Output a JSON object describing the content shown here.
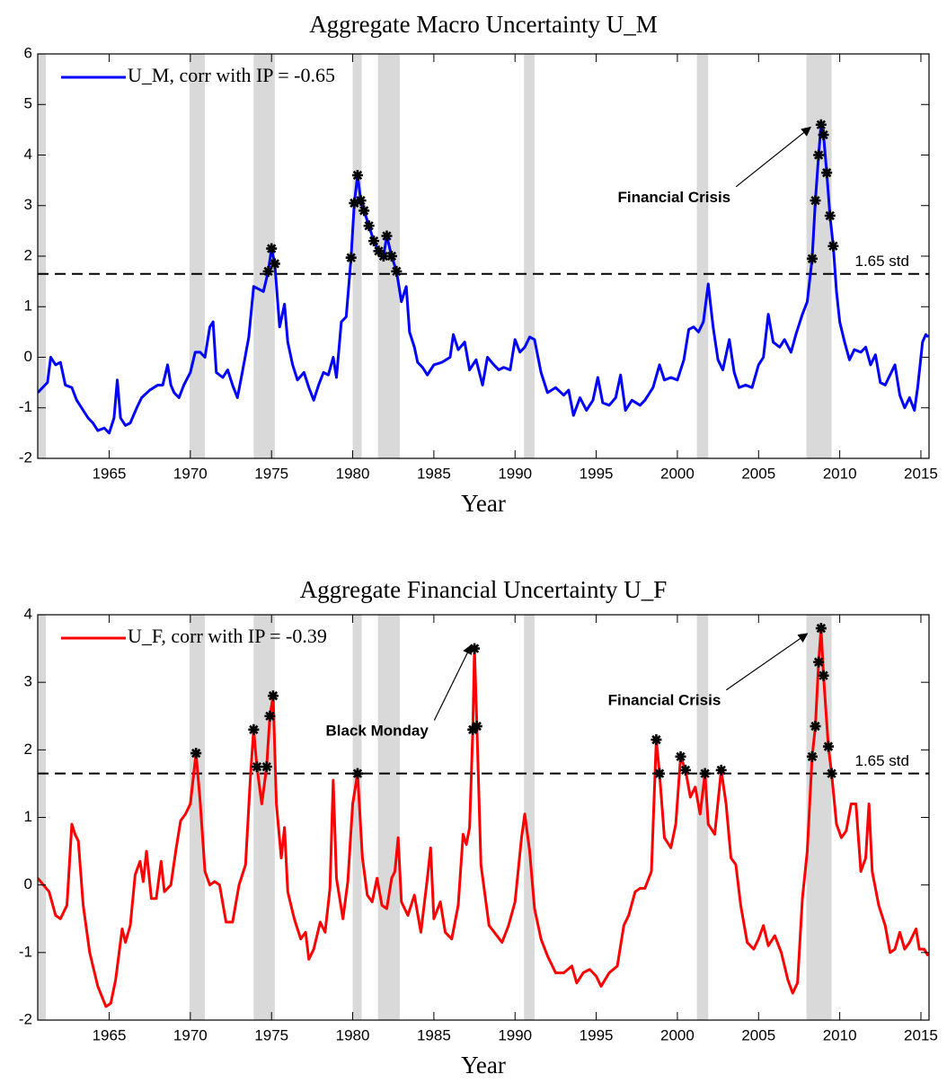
{
  "chart_data": [
    {
      "type": "line",
      "title": "Aggregate Macro Uncertainty U_M",
      "xlabel": "Year",
      "x": [
        1960.6,
        1961.2,
        1961.4,
        1961.7,
        1962.0,
        1962.3,
        1962.7,
        1963.0,
        1963.3,
        1963.7,
        1964.0,
        1964.3,
        1964.7,
        1965.0,
        1965.3,
        1965.5,
        1965.7,
        1966.0,
        1966.3,
        1966.7,
        1967.0,
        1967.5,
        1968.0,
        1968.3,
        1968.6,
        1968.8,
        1969.0,
        1969.3,
        1969.6,
        1970.0,
        1970.3,
        1970.6,
        1970.9,
        1971.2,
        1971.4,
        1971.6,
        1972.0,
        1972.3,
        1972.6,
        1972.9,
        1973.2,
        1973.6,
        1973.9,
        1974.2,
        1974.5,
        1974.8,
        1975.0,
        1975.2,
        1975.5,
        1975.8,
        1976.0,
        1976.3,
        1976.6,
        1977.0,
        1977.3,
        1977.6,
        1977.9,
        1978.2,
        1978.5,
        1978.8,
        1979.0,
        1979.3,
        1979.6,
        1979.9,
        1980.1,
        1980.3,
        1980.5,
        1980.7,
        1981.0,
        1981.3,
        1981.6,
        1981.9,
        1982.1,
        1982.4,
        1982.7,
        1983.0,
        1983.3,
        1983.5,
        1983.8,
        1984.0,
        1984.3,
        1984.6,
        1985.0,
        1985.5,
        1986.0,
        1986.2,
        1986.5,
        1986.9,
        1987.2,
        1987.6,
        1988.0,
        1988.3,
        1988.7,
        1989.0,
        1989.3,
        1989.7,
        1990.0,
        1990.3,
        1990.6,
        1990.9,
        1991.2,
        1991.6,
        1992.0,
        1992.5,
        1993.0,
        1993.3,
        1993.6,
        1994.0,
        1994.4,
        1994.8,
        1995.1,
        1995.4,
        1995.8,
        1996.2,
        1996.5,
        1996.8,
        1997.2,
        1997.7,
        1998.0,
        1998.5,
        1998.9,
        1999.2,
        1999.6,
        2000.0,
        2000.4,
        2000.7,
        2001.0,
        2001.3,
        2001.6,
        2001.9,
        2002.2,
        2002.5,
        2002.8,
        2003.2,
        2003.5,
        2003.8,
        2004.2,
        2004.6,
        2005.0,
        2005.3,
        2005.6,
        2005.9,
        2006.3,
        2006.6,
        2007.0,
        2007.3,
        2007.7,
        2008.0,
        2008.3,
        2008.5,
        2008.7,
        2008.85,
        2009.0,
        2009.2,
        2009.4,
        2009.6,
        2009.8,
        2010.0,
        2010.3,
        2010.6,
        2010.9,
        2011.3,
        2011.6,
        2011.9,
        2012.2,
        2012.5,
        2012.8,
        2013.1,
        2013.4,
        2013.7,
        2014.0,
        2014.3,
        2014.6,
        2014.8,
        2015.1,
        2015.3,
        2015.45
      ],
      "series": [
        {
          "name": "U_M, corr with IP = -0.65",
          "color": "#0000ff",
          "values": [
            -0.7,
            -0.5,
            0.0,
            -0.15,
            -0.1,
            -0.55,
            -0.6,
            -0.85,
            -1.0,
            -1.2,
            -1.3,
            -1.45,
            -1.4,
            -1.5,
            -1.2,
            -0.45,
            -1.2,
            -1.35,
            -1.3,
            -1.0,
            -0.8,
            -0.65,
            -0.55,
            -0.55,
            -0.15,
            -0.55,
            -0.7,
            -0.8,
            -0.55,
            -0.3,
            0.1,
            0.1,
            0.0,
            0.6,
            0.7,
            -0.3,
            -0.4,
            -0.25,
            -0.55,
            -0.8,
            -0.3,
            0.4,
            1.4,
            1.35,
            1.3,
            1.7,
            2.15,
            1.85,
            0.6,
            1.05,
            0.3,
            -0.15,
            -0.45,
            -0.3,
            -0.6,
            -0.85,
            -0.55,
            -0.3,
            -0.35,
            0.0,
            -0.4,
            0.7,
            0.8,
            1.97,
            3.05,
            3.6,
            3.1,
            2.9,
            2.6,
            2.3,
            2.1,
            2.0,
            2.4,
            2.0,
            1.7,
            1.1,
            1.4,
            0.5,
            0.2,
            -0.1,
            -0.2,
            -0.35,
            -0.15,
            -0.1,
            0.0,
            0.45,
            0.15,
            0.3,
            -0.25,
            -0.05,
            -0.55,
            0.0,
            -0.15,
            -0.25,
            -0.2,
            -0.25,
            0.35,
            0.1,
            0.2,
            0.4,
            0.35,
            -0.3,
            -0.7,
            -0.6,
            -0.75,
            -0.65,
            -1.15,
            -0.8,
            -1.05,
            -0.85,
            -0.4,
            -0.9,
            -0.95,
            -0.8,
            -0.35,
            -1.05,
            -0.85,
            -0.95,
            -0.85,
            -0.6,
            -0.15,
            -0.45,
            -0.4,
            -0.45,
            -0.05,
            0.55,
            0.6,
            0.5,
            0.7,
            1.45,
            0.6,
            -0.05,
            -0.25,
            0.35,
            -0.3,
            -0.6,
            -0.55,
            -0.6,
            -0.15,
            0.0,
            0.85,
            0.3,
            0.2,
            0.35,
            0.1,
            0.45,
            0.85,
            1.1,
            1.95,
            3.1,
            4.0,
            4.6,
            4.4,
            3.65,
            2.8,
            2.2,
            1.3,
            0.7,
            0.3,
            -0.05,
            0.15,
            0.1,
            0.2,
            -0.15,
            0.05,
            -0.5,
            -0.55,
            -0.35,
            -0.15,
            -0.75,
            -1.0,
            -0.8,
            -1.05,
            -0.6,
            0.3,
            0.45,
            0.4
          ]
        }
      ],
      "xlim": [
        1960.6,
        2015.5
      ],
      "ylim": [
        -2,
        6
      ],
      "xticks": [
        1965,
        1970,
        1975,
        1980,
        1985,
        1990,
        1995,
        2000,
        2005,
        2010,
        2015
      ],
      "yticks": [
        -2,
        -1,
        0,
        1,
        2,
        3,
        4,
        5,
        6
      ],
      "legend": "upper left",
      "threshold": 1.65,
      "threshold_label": "1.65 std",
      "threshold_label_color": "#ff0000",
      "marker": "asterisk",
      "marker_color": "#000000",
      "shade_color": "#d9d9d9",
      "shaded_regions": [
        [
          1960.3,
          1961.1
        ],
        [
          1969.95,
          1970.9
        ],
        [
          1973.9,
          1975.2
        ],
        [
          1980.0,
          1980.55
        ],
        [
          1981.55,
          1982.9
        ],
        [
          1990.55,
          1991.2
        ],
        [
          2001.2,
          2001.9
        ],
        [
          2007.95,
          2009.5
        ]
      ],
      "annotations": [
        {
          "text": "Financial Crisis",
          "xy": [
            2008.2,
            4.55
          ],
          "xytext": [
            1999.8,
            3.15
          ]
        }
      ]
    },
    {
      "type": "line",
      "title": "Aggregate Financial Uncertainty U_F",
      "xlabel": "Year",
      "x": [
        1960.6,
        1961.3,
        1961.7,
        1962.0,
        1962.4,
        1962.7,
        1962.9,
        1963.1,
        1963.4,
        1963.8,
        1964.3,
        1964.8,
        1965.1,
        1965.4,
        1965.8,
        1966.0,
        1966.3,
        1966.6,
        1966.9,
        1967.1,
        1967.3,
        1967.6,
        1967.9,
        1968.2,
        1968.4,
        1968.8,
        1969.1,
        1969.4,
        1969.7,
        1970.0,
        1970.35,
        1970.6,
        1970.9,
        1971.2,
        1971.5,
        1971.8,
        1972.2,
        1972.6,
        1973.0,
        1973.4,
        1973.7,
        1973.9,
        1974.1,
        1974.4,
        1974.7,
        1974.9,
        1975.1,
        1975.3,
        1975.6,
        1975.8,
        1976.0,
        1976.4,
        1976.8,
        1977.1,
        1977.3,
        1977.6,
        1978.0,
        1978.3,
        1978.6,
        1978.8,
        1979.0,
        1979.4,
        1979.7,
        1980.0,
        1980.3,
        1980.6,
        1980.9,
        1981.2,
        1981.5,
        1981.8,
        1982.1,
        1982.4,
        1982.6,
        1982.8,
        1983.0,
        1983.4,
        1983.8,
        1984.2,
        1984.6,
        1984.8,
        1985.0,
        1985.4,
        1985.7,
        1986.1,
        1986.5,
        1986.8,
        1987.0,
        1987.2,
        1987.4,
        1987.5,
        1987.65,
        1987.9,
        1988.4,
        1989.2,
        1989.6,
        1990.0,
        1990.4,
        1990.6,
        1990.9,
        1991.2,
        1991.6,
        1992.0,
        1992.5,
        1993.0,
        1993.5,
        1993.8,
        1994.2,
        1994.6,
        1995.0,
        1995.3,
        1995.8,
        1996.3,
        1996.7,
        1997.0,
        1997.4,
        1997.7,
        1998.0,
        1998.4,
        1998.7,
        1998.9,
        1999.2,
        1999.6,
        1999.9,
        2000.2,
        2000.5,
        2000.8,
        2001.1,
        2001.4,
        2001.7,
        2001.9,
        2002.3,
        2002.7,
        2003.0,
        2003.3,
        2003.6,
        2003.9,
        2004.3,
        2004.7,
        2005.0,
        2005.3,
        2005.6,
        2006.0,
        2006.4,
        2006.8,
        2007.1,
        2007.4,
        2007.7,
        2008.0,
        2008.3,
        2008.5,
        2008.7,
        2008.85,
        2009.0,
        2009.3,
        2009.5,
        2009.8,
        2010.1,
        2010.4,
        2010.7,
        2011.0,
        2011.3,
        2011.6,
        2011.8,
        2012.0,
        2012.4,
        2012.8,
        2013.1,
        2013.4,
        2013.7,
        2014.0,
        2014.3,
        2014.7,
        2014.9,
        2015.2,
        2015.45
      ],
      "series": [
        {
          "name": "U_F, corr with IP = -0.39",
          "color": "#ff0000",
          "values": [
            0.1,
            -0.1,
            -0.45,
            -0.5,
            -0.3,
            0.9,
            0.75,
            0.65,
            -0.3,
            -1.0,
            -1.5,
            -1.8,
            -1.75,
            -1.4,
            -0.65,
            -0.85,
            -0.6,
            0.15,
            0.35,
            0.05,
            0.5,
            -0.2,
            -0.2,
            0.35,
            -0.1,
            0.0,
            0.5,
            0.95,
            1.05,
            1.2,
            1.95,
            1.25,
            0.2,
            0.0,
            0.05,
            0.0,
            -0.55,
            -0.55,
            0.0,
            0.3,
            1.6,
            2.3,
            1.75,
            1.2,
            1.75,
            2.5,
            2.8,
            1.2,
            0.4,
            0.85,
            -0.1,
            -0.5,
            -0.8,
            -0.7,
            -1.1,
            -0.95,
            -0.55,
            -0.7,
            -0.05,
            1.55,
            0.1,
            -0.5,
            0.05,
            1.2,
            1.65,
            0.4,
            -0.15,
            -0.25,
            0.1,
            -0.3,
            -0.35,
            0.1,
            0.2,
            0.7,
            -0.25,
            -0.45,
            -0.15,
            -0.7,
            0.1,
            0.55,
            -0.5,
            -0.25,
            -0.7,
            -0.8,
            -0.3,
            0.75,
            0.6,
            0.85,
            2.3,
            3.5,
            2.35,
            0.3,
            -0.6,
            -0.85,
            -0.6,
            -0.25,
            0.7,
            1.05,
            0.5,
            -0.35,
            -0.8,
            -1.05,
            -1.3,
            -1.3,
            -1.2,
            -1.45,
            -1.3,
            -1.25,
            -1.35,
            -1.5,
            -1.3,
            -1.2,
            -0.6,
            -0.45,
            -0.1,
            -0.05,
            -0.05,
            0.2,
            2.15,
            1.65,
            0.7,
            0.55,
            0.9,
            1.9,
            1.7,
            1.3,
            1.45,
            1.05,
            1.65,
            0.9,
            0.75,
            1.7,
            1.2,
            0.4,
            0.3,
            -0.3,
            -0.85,
            -0.95,
            -0.8,
            -0.6,
            -0.9,
            -0.75,
            -1.0,
            -1.4,
            -1.6,
            -1.45,
            -0.2,
            0.5,
            1.9,
            2.35,
            3.3,
            3.8,
            3.1,
            2.05,
            1.65,
            0.9,
            0.7,
            0.8,
            1.2,
            1.2,
            0.2,
            0.4,
            1.2,
            0.2,
            -0.3,
            -0.6,
            -1.0,
            -0.95,
            -0.7,
            -0.95,
            -0.85,
            -0.65,
            -0.95,
            -0.95,
            -1.05
          ]
        }
      ],
      "xlim": [
        1960.6,
        2015.5
      ],
      "ylim": [
        -2,
        4
      ],
      "xticks": [
        1965,
        1970,
        1975,
        1980,
        1985,
        1990,
        1995,
        2000,
        2005,
        2010,
        2015
      ],
      "yticks": [
        -2,
        -1,
        0,
        1,
        2,
        3,
        4
      ],
      "legend": "upper left",
      "threshold": 1.65,
      "threshold_label": "1.65 std",
      "threshold_label_color": "#ff0000",
      "marker": "asterisk",
      "marker_color": "#000000",
      "shade_color": "#d9d9d9",
      "shaded_regions": [
        [
          1960.3,
          1961.1
        ],
        [
          1969.95,
          1970.9
        ],
        [
          1973.9,
          1975.2
        ],
        [
          1980.0,
          1980.55
        ],
        [
          1981.55,
          1982.9
        ],
        [
          1990.55,
          1991.2
        ],
        [
          2001.2,
          2001.9
        ],
        [
          2007.95,
          2009.5
        ]
      ],
      "annotations": [
        {
          "text": "Black Monday",
          "xy": [
            1987.3,
            3.55
          ],
          "xytext": [
            1981.5,
            2.27
          ]
        },
        {
          "text": "Financial Crisis",
          "xy": [
            2008.0,
            3.72
          ],
          "xytext": [
            1999.2,
            2.72
          ]
        }
      ]
    }
  ]
}
